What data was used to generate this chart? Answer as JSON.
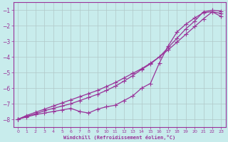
{
  "xlabel": "Windchill (Refroidissement éolien,°C)",
  "background_color": "#c8ecec",
  "grid_color": "#b0c8c8",
  "line_color": "#993399",
  "xlim": [
    -0.5,
    23.5
  ],
  "ylim": [
    -8.5,
    -0.5
  ],
  "xticks": [
    0,
    1,
    2,
    3,
    4,
    5,
    6,
    7,
    8,
    9,
    10,
    11,
    12,
    13,
    14,
    15,
    16,
    17,
    18,
    19,
    20,
    21,
    22,
    23
  ],
  "yticks": [
    -8,
    -7,
    -6,
    -5,
    -4,
    -3,
    -2,
    -1
  ],
  "line1_x": [
    0,
    1,
    2,
    3,
    4,
    5,
    6,
    7,
    8,
    9,
    10,
    11,
    12,
    13,
    14,
    15,
    16,
    17,
    18,
    19,
    20,
    21,
    22,
    23
  ],
  "line1_y": [
    -8.0,
    -7.85,
    -7.7,
    -7.6,
    -7.5,
    -7.4,
    -7.3,
    -7.5,
    -7.6,
    -7.35,
    -7.2,
    -7.1,
    -6.8,
    -6.5,
    -6.0,
    -5.7,
    -4.4,
    -3.3,
    -2.4,
    -1.9,
    -1.5,
    -1.15,
    -1.1,
    -1.4
  ],
  "line2_x": [
    0,
    1,
    2,
    3,
    4,
    5,
    6,
    7,
    8,
    9,
    10,
    11,
    12,
    13,
    14,
    15,
    16,
    17,
    18,
    19,
    20,
    21,
    22,
    23
  ],
  "line2_y": [
    -8.0,
    -7.75,
    -7.55,
    -7.35,
    -7.15,
    -6.95,
    -6.75,
    -6.55,
    -6.35,
    -6.15,
    -5.9,
    -5.65,
    -5.35,
    -5.05,
    -4.75,
    -4.4,
    -4.0,
    -3.55,
    -3.05,
    -2.55,
    -2.05,
    -1.55,
    -1.1,
    -1.2
  ],
  "line3_x": [
    0,
    1,
    2,
    3,
    4,
    5,
    6,
    7,
    8,
    9,
    10,
    11,
    12,
    13,
    14,
    15,
    16,
    17,
    18,
    19,
    20,
    21,
    22,
    23
  ],
  "line3_y": [
    -8.0,
    -7.8,
    -7.65,
    -7.45,
    -7.3,
    -7.15,
    -7.0,
    -6.8,
    -6.6,
    -6.4,
    -6.15,
    -5.88,
    -5.55,
    -5.2,
    -4.8,
    -4.45,
    -4.0,
    -3.4,
    -2.8,
    -2.2,
    -1.7,
    -1.1,
    -1.0,
    -1.05
  ]
}
